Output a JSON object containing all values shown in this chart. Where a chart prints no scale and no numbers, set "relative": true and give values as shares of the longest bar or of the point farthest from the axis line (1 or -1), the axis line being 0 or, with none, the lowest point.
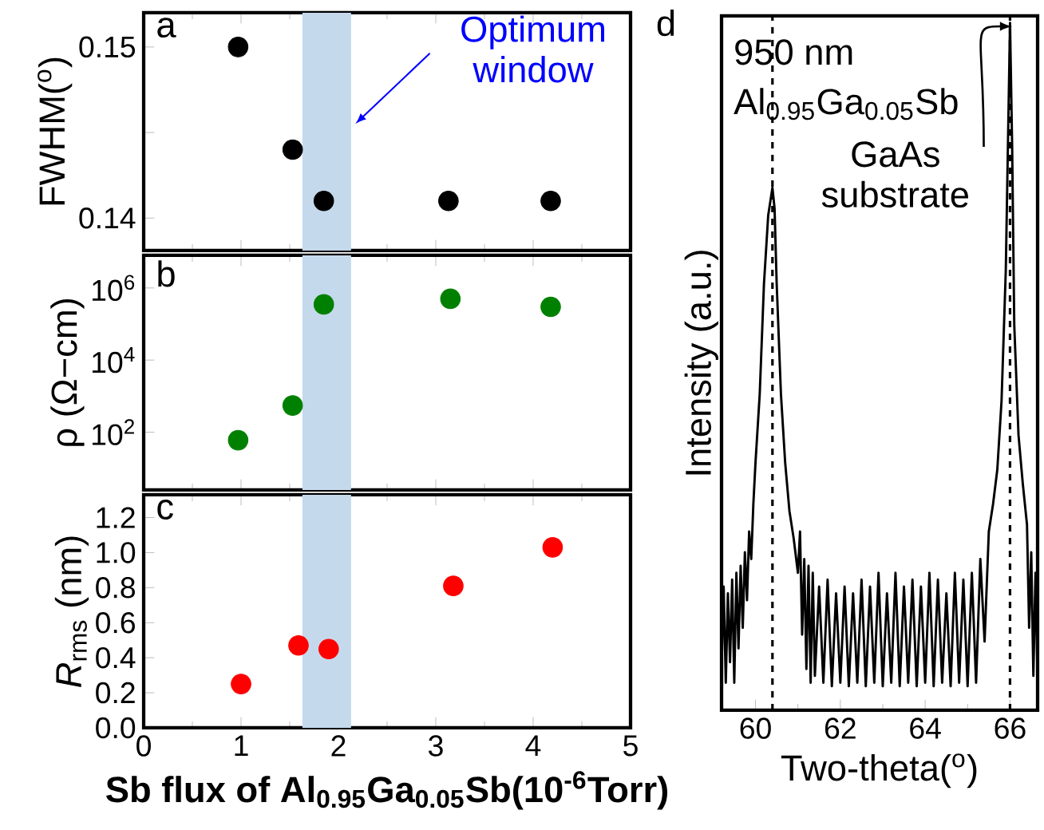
{
  "chart_data": [
    {
      "type": "scatter",
      "ylabel": "FWHM($^{o}$)",
      "annotations": [
        "a",
        {
          "text": "Optimum window",
          "x": 2.13,
          "y": 0.1455
        }
      ],
      "x": [
        0.97,
        1.53,
        1.85,
        3.13,
        4.18
      ],
      "values": [
        0.15,
        0.144,
        0.141,
        0.141,
        0.141
      ],
      "color": "#000000",
      "xlim": [
        0,
        5
      ],
      "ylim": [
        0.1381,
        0.152
      ],
      "xticks": [
        0,
        1,
        2,
        3,
        4,
        5
      ],
      "yticks": [
        0.14,
        {
          "value": 0.145,
          "label": null
        },
        0.15
      ],
      "tick_labels": "y",
      "bands": [
        {
          "axis": "x",
          "from": 1.63,
          "to": 2.13,
          "color": "#c5d9ec"
        }
      ]
    },
    {
      "type": "scatter",
      "ylabel": "ρ (Ω−cm)",
      "annotations": [
        "b"
      ],
      "x": [
        0.97,
        1.53,
        1.85,
        3.15,
        4.18
      ],
      "values": [
        60,
        550,
        350000,
        500000,
        300000
      ],
      "color": "#008000",
      "log": "y",
      "xlim": [
        0,
        5
      ],
      "ylim": [
        2.5,
        8000000
      ],
      "xticks": [
        0,
        1,
        2,
        3,
        4,
        5
      ],
      "yticks": [
        {
          "value": 100,
          "label": "10$^{2}$"
        },
        {
          "value": 10000,
          "label": "10$^{4}$"
        },
        {
          "value": 1000000,
          "label": "10$^{6}$"
        }
      ],
      "tick_labels": "y",
      "bands": [
        {
          "axis": "x",
          "from": 1.63,
          "to": 2.13,
          "color": "#c5d9ec"
        }
      ]
    },
    {
      "type": "scatter",
      "ylabel": "*R*$_{rms}$ (nm)",
      "xlabel": "Sb flux of Al$_{0.95}$Ga$_{0.05}$Sb(10$^{-6}$Torr)",
      "annotations": [
        "c"
      ],
      "x": [
        1.0,
        1.59,
        1.9,
        3.18,
        4.2
      ],
      "values": [
        0.25,
        0.47,
        0.45,
        0.81,
        1.03
      ],
      "color": "#ff0000",
      "xlim": [
        0,
        5
      ],
      "ylim": [
        0,
        1.33
      ],
      "xticks": [
        0,
        1,
        2,
        3,
        4,
        5
      ],
      "yticks": [
        {
          "value": 0,
          "label": "0.0"
        },
        0.2,
        0.4,
        0.6,
        0.8,
        {
          "value": 1,
          "label": "1.0"
        },
        1.2
      ],
      "bands": [
        {
          "axis": "x",
          "from": 1.63,
          "to": 2.13,
          "color": "#c5d9ec"
        }
      ]
    },
    {
      "type": "line",
      "xlabel": "Two-theta($^{o}$)",
      "ylabel": "Intensity (a.u.)",
      "relative": true,
      "tick_labels": "x",
      "annotations": [
        "d",
        "950 nm",
        "Al$_{0.95}$Ga$_{0.05}$Sb",
        "GaAs substrate"
      ],
      "xlim": [
        59.2,
        66.65
      ],
      "xticks": [
        60,
        62,
        64,
        66
      ],
      "ref_lines": [
        {
          "axis": "x",
          "value": 60.4,
          "line_style": "dashed"
        },
        {
          "axis": "x",
          "value": 66.0,
          "line_style": "dashed"
        }
      ],
      "series": [
        {
          "color": "#000000",
          "x": [
            59.2,
            59.25,
            59.3,
            59.35,
            59.4,
            59.45,
            59.5,
            59.55,
            59.6,
            59.65,
            59.7,
            59.75,
            59.8,
            59.85,
            59.9,
            59.95,
            60.0,
            60.1,
            60.2,
            60.3,
            60.4,
            60.45,
            60.5,
            60.6,
            60.7,
            60.8,
            60.9,
            61.0,
            61.05,
            61.1,
            61.15,
            61.2,
            61.25,
            61.3,
            61.35,
            61.4,
            61.5,
            61.6,
            61.7,
            61.8,
            61.9,
            62.0,
            62.1,
            62.2,
            62.3,
            62.4,
            62.5,
            62.6,
            62.7,
            62.8,
            62.9,
            63.0,
            63.1,
            63.2,
            63.3,
            63.4,
            63.5,
            63.6,
            63.7,
            63.8,
            63.9,
            64.0,
            64.1,
            64.2,
            64.3,
            64.4,
            64.5,
            64.6,
            64.7,
            64.8,
            64.9,
            65.0,
            65.1,
            65.2,
            65.3,
            65.4,
            65.5,
            65.6,
            65.7,
            65.8,
            65.9,
            66.0,
            66.05,
            66.1,
            66.2,
            66.3,
            66.4,
            66.45,
            66.5,
            66.55,
            66.6,
            66.65
          ],
          "values": [
            0.06,
            0.18,
            0.04,
            0.17,
            0.07,
            0.19,
            0.04,
            0.2,
            0.09,
            0.21,
            0.12,
            0.23,
            0.16,
            0.26,
            0.22,
            0.3,
            0.36,
            0.46,
            0.62,
            0.72,
            0.76,
            0.73,
            0.62,
            0.46,
            0.36,
            0.29,
            0.25,
            0.2,
            0.26,
            0.11,
            0.22,
            0.06,
            0.21,
            0.04,
            0.2,
            0.05,
            0.18,
            0.04,
            0.19,
            0.035,
            0.17,
            0.04,
            0.18,
            0.035,
            0.17,
            0.04,
            0.19,
            0.035,
            0.18,
            0.04,
            0.2,
            0.035,
            0.17,
            0.04,
            0.2,
            0.035,
            0.18,
            0.04,
            0.19,
            0.035,
            0.18,
            0.04,
            0.2,
            0.035,
            0.19,
            0.04,
            0.17,
            0.035,
            0.2,
            0.04,
            0.19,
            0.035,
            0.2,
            0.04,
            0.22,
            0.1,
            0.26,
            0.3,
            0.35,
            0.45,
            0.64,
            1.0,
            0.82,
            0.56,
            0.4,
            0.33,
            0.27,
            0.12,
            0.23,
            0.05,
            0.2,
            0.04
          ]
        }
      ]
    }
  ]
}
